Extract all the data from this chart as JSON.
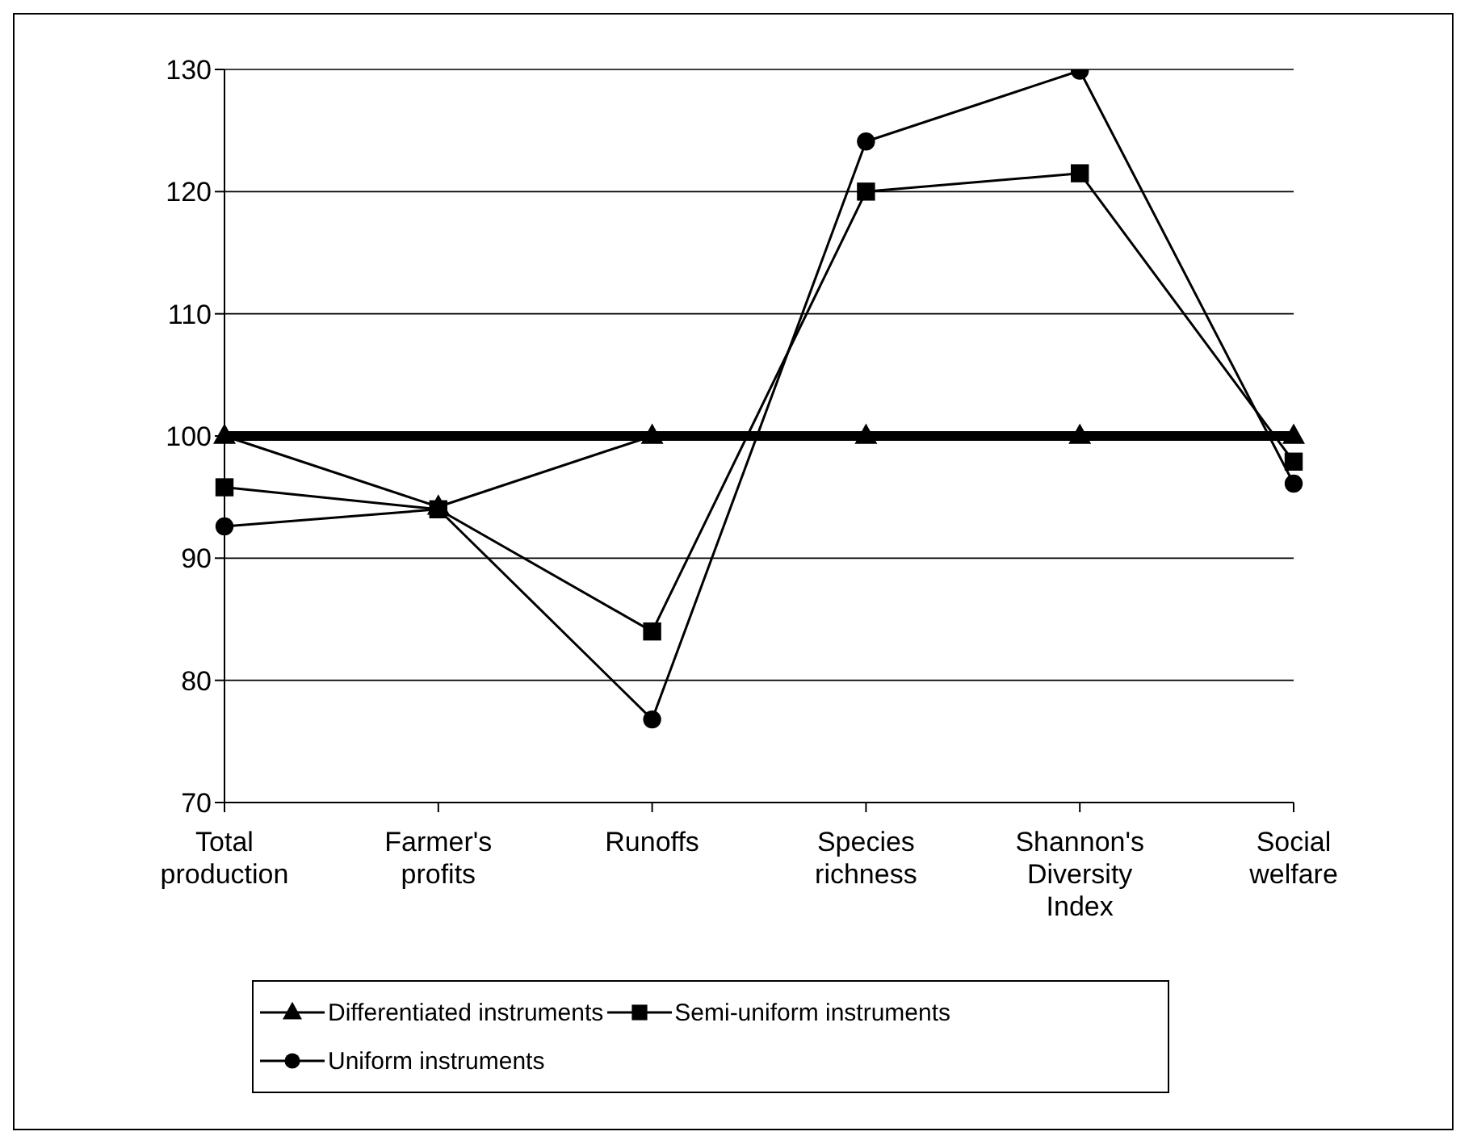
{
  "chart_data": {
    "type": "line",
    "categories": [
      "Total production",
      "Farmer's profits",
      "Runoffs",
      "Species richness",
      "Shannon's Diversity Index",
      "Social welfare"
    ],
    "series": [
      {
        "name": "Differentiated instruments",
        "color": "#000000",
        "marker": "triangle",
        "values": [
          100,
          94.2,
          100,
          100,
          100,
          100
        ]
      },
      {
        "name": "Semi-uniform instruments",
        "color": "#000000",
        "marker": "square",
        "values": [
          95.8,
          94,
          84,
          120,
          121.5,
          97.9
        ]
      },
      {
        "name": "Uniform instruments",
        "color": "#000000",
        "marker": "circle",
        "values": [
          92.6,
          94,
          76.8,
          124.1,
          129.9,
          96.1
        ]
      }
    ],
    "ylim": [
      70,
      130
    ],
    "yticks": [
      70,
      80,
      90,
      100,
      110,
      120,
      130
    ],
    "grid": "y",
    "legend": "bottom",
    "line_style": "solid",
    "ref_lines": [
      {
        "axis": "y",
        "value": 100,
        "color": "#000000"
      }
    ]
  }
}
